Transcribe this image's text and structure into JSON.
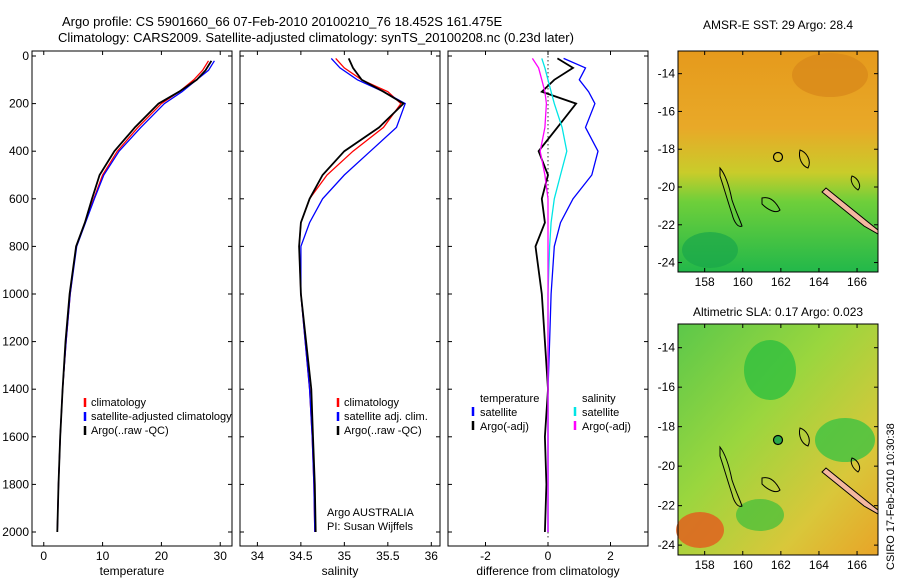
{
  "title": {
    "line1": "Argo profile: CS 5901660_66 07-Feb-2010 20100210_76 18.452S 161.475E",
    "line2": "Climatology: CARS2009. Satellite-adjusted climatology: synTS_20100208.nc (0.23d later)"
  },
  "credit": "CSIRO 17-Feb-2010 10:30:38",
  "colors": {
    "clim": "#ff0000",
    "sat": "#0000ff",
    "argo": "#000000",
    "sal_sat": "#00e5e5",
    "sal_argo": "#ff00ff"
  },
  "chart_data": [
    {
      "id": "temperature",
      "type": "line",
      "xlabel": "temperature",
      "ylabel": "",
      "xlim": [
        -2,
        32
      ],
      "ylim": [
        2100,
        0
      ],
      "xticks": [
        "0",
        "10",
        "20",
        "30"
      ],
      "yticks": [
        "0",
        "200",
        "400",
        "600",
        "800",
        "1000",
        "1200",
        "1400",
        "1600",
        "1800",
        "2000"
      ],
      "legend": [
        "climatology",
        "satellite-adjusted climatology",
        "Argo(..raw -QC)"
      ],
      "series": [
        {
          "name": "climatology",
          "color_key": "clim",
          "x": [
            28.0,
            27.0,
            25.5,
            23.0,
            20.0,
            16.0,
            12.5,
            10.0,
            8.5,
            7.0,
            5.5,
            4.5,
            3.8,
            3.2,
            2.8,
            2.5,
            2.3
          ],
          "y": [
            20,
            60,
            100,
            150,
            200,
            300,
            400,
            500,
            600,
            700,
            800,
            1000,
            1200,
            1400,
            1600,
            1800,
            2000
          ]
        },
        {
          "name": "satellite-adjusted climatology",
          "color_key": "sat",
          "x": [
            29.0,
            28.0,
            26.0,
            23.5,
            20.5,
            16.5,
            12.8,
            10.2,
            8.6,
            7.1,
            5.6,
            4.5,
            3.8,
            3.2,
            2.8,
            2.5,
            2.3
          ],
          "y": [
            20,
            60,
            100,
            150,
            200,
            300,
            400,
            500,
            600,
            700,
            800,
            1000,
            1200,
            1400,
            1600,
            1800,
            2000
          ]
        },
        {
          "name": "Argo(..raw -QC)",
          "color_key": "argo",
          "x": [
            28.5,
            27.5,
            26.0,
            23.0,
            19.5,
            15.5,
            12.0,
            9.5,
            8.2,
            7.0,
            5.5,
            4.4,
            3.7,
            3.2,
            2.8,
            2.5,
            2.3
          ],
          "y": [
            20,
            60,
            100,
            150,
            200,
            300,
            400,
            500,
            600,
            700,
            800,
            1000,
            1200,
            1400,
            1600,
            1800,
            2000
          ]
        }
      ]
    },
    {
      "id": "salinity",
      "type": "line",
      "xlabel": "salinity",
      "xlim": [
        33.8,
        36.1
      ],
      "ylim": [
        2100,
        0
      ],
      "xticks": [
        "34",
        "34.5",
        "35",
        "35.5",
        "36"
      ],
      "legend": [
        "climatology",
        "satellite adj. clim.",
        "Argo(..raw -QC)"
      ],
      "annotation": [
        "Argo AUSTRALIA",
        "PI: Susan Wijffels"
      ],
      "series": [
        {
          "name": "climatology",
          "color_key": "clim",
          "x": [
            34.9,
            35.0,
            35.2,
            35.5,
            35.65,
            35.45,
            35.1,
            34.8,
            34.6,
            34.5,
            34.48,
            34.5,
            34.55,
            34.6,
            34.63,
            34.65,
            34.66
          ],
          "y": [
            10,
            50,
            100,
            150,
            200,
            300,
            400,
            500,
            600,
            700,
            800,
            1000,
            1200,
            1400,
            1600,
            1800,
            2000
          ]
        },
        {
          "name": "satellite adj. clim.",
          "color_key": "sat",
          "x": [
            34.85,
            34.95,
            35.15,
            35.45,
            35.7,
            35.6,
            35.3,
            35.0,
            34.75,
            34.6,
            34.5,
            34.5,
            34.55,
            34.6,
            34.63,
            34.65,
            34.66
          ],
          "y": [
            10,
            50,
            100,
            150,
            200,
            300,
            400,
            500,
            600,
            700,
            800,
            1000,
            1200,
            1400,
            1600,
            1800,
            2000
          ]
        },
        {
          "name": "Argo(..raw -QC)",
          "color_key": "argo",
          "x": [
            35.05,
            35.1,
            35.2,
            35.45,
            35.68,
            35.4,
            35.0,
            34.75,
            34.6,
            34.5,
            34.48,
            34.5,
            34.56,
            34.62,
            34.64,
            34.66,
            34.67
          ],
          "y": [
            10,
            50,
            100,
            150,
            200,
            300,
            400,
            500,
            600,
            700,
            800,
            1000,
            1200,
            1400,
            1600,
            1800,
            2000
          ]
        }
      ]
    },
    {
      "id": "difference",
      "type": "line",
      "xlabel": "difference from climatology",
      "xlim": [
        -3.2,
        3.2
      ],
      "ylim": [
        2100,
        0
      ],
      "xticks": [
        "-2",
        "0",
        "2"
      ],
      "legend_left": [
        "temperature",
        "satellite",
        "Argo(-adj)"
      ],
      "legend_right": [
        "salinity",
        "satellite",
        "Argo(-adj)"
      ],
      "series": [
        {
          "name": "temperature satellite",
          "color_key": "sat",
          "x": [
            0.5,
            1.2,
            1.0,
            1.3,
            1.5,
            1.2,
            1.6,
            1.4,
            0.8,
            0.4,
            0.2,
            0.1,
            0.05,
            0.0,
            0.0,
            0.0,
            0.0
          ],
          "y": [
            10,
            50,
            100,
            150,
            200,
            300,
            400,
            500,
            600,
            700,
            800,
            1000,
            1200,
            1400,
            1600,
            1800,
            2000
          ]
        },
        {
          "name": "temperature Argo(-adj)",
          "color_key": "argo",
          "x": [
            0.3,
            0.8,
            0.2,
            -0.2,
            0.9,
            0.3,
            -0.3,
            0.0,
            -0.2,
            -0.1,
            -0.4,
            -0.2,
            -0.1,
            0.0,
            -0.1,
            -0.05,
            -0.1
          ],
          "y": [
            10,
            50,
            100,
            150,
            200,
            300,
            400,
            500,
            600,
            700,
            800,
            1000,
            1200,
            1400,
            1600,
            1800,
            2000
          ]
        },
        {
          "name": "salinity satellite",
          "color_key": "sal_sat",
          "x": [
            -0.2,
            -0.1,
            0.0,
            0.1,
            0.2,
            0.45,
            0.6,
            0.4,
            0.2,
            0.1,
            0.05,
            0.0,
            0.0,
            0.0,
            0.0,
            0.0,
            0.0
          ],
          "y": [
            10,
            50,
            100,
            150,
            200,
            300,
            400,
            500,
            600,
            700,
            800,
            1000,
            1200,
            1400,
            1600,
            1800,
            2000
          ]
        },
        {
          "name": "salinity Argo(-adj)",
          "color_key": "sal_argo",
          "x": [
            -0.5,
            -0.3,
            -0.2,
            -0.1,
            -0.05,
            -0.1,
            -0.25,
            -0.1,
            0.0,
            0.0,
            0.0,
            0.0,
            0.0,
            0.0,
            0.0,
            0.0,
            0.0
          ],
          "y": [
            10,
            50,
            100,
            150,
            200,
            300,
            400,
            500,
            600,
            700,
            800,
            1000,
            1200,
            1400,
            1600,
            1800,
            2000
          ]
        }
      ]
    },
    {
      "id": "sst-map",
      "type": "heatmap",
      "title": "AMSR-E SST: 29 Argo: 28.4",
      "xlim": [
        156.6,
        167.1
      ],
      "ylim": [
        -24.5,
        -12.8
      ],
      "xticks": [
        "158",
        "160",
        "162",
        "164",
        "166"
      ],
      "yticks": [
        "-14",
        "-16",
        "-18",
        "-20",
        "-22",
        "-24"
      ],
      "argo_position": [
        161.5,
        -18.45
      ]
    },
    {
      "id": "sla-map",
      "type": "heatmap",
      "title": "Altimetric SLA: 0.17 Argo: 0.023",
      "xlim": [
        156.6,
        167.1
      ],
      "ylim": [
        -24.5,
        -12.8
      ],
      "xticks": [
        "158",
        "160",
        "162",
        "164",
        "166"
      ],
      "yticks": [
        "-14",
        "-16",
        "-18",
        "-20",
        "-22",
        "-24"
      ],
      "argo_position": [
        161.5,
        -18.45
      ]
    }
  ]
}
